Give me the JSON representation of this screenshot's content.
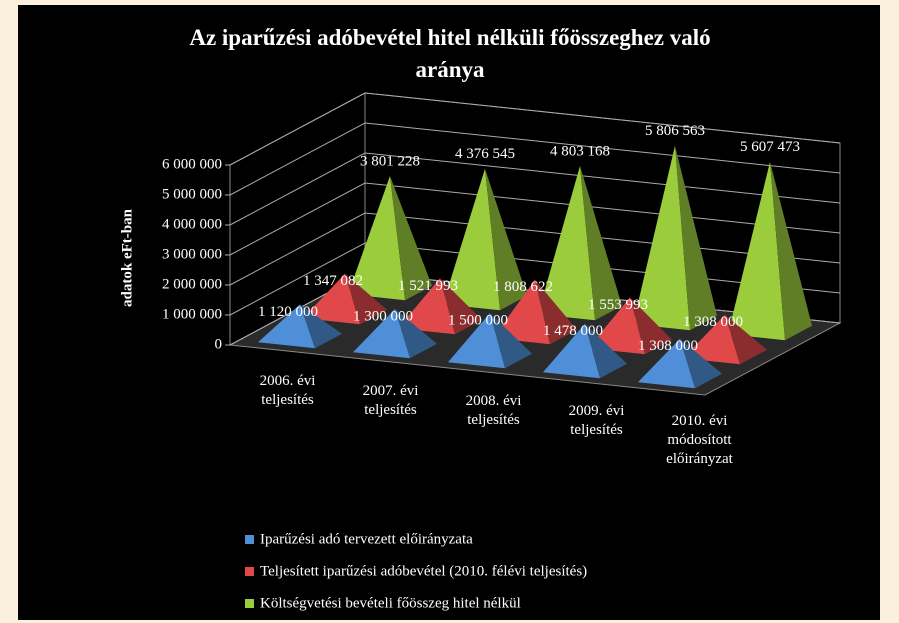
{
  "chart_data": {
    "type": "pyramid3d",
    "title": "Az iparűzési adóbevétel hitel nélküli főösszeghez való aránya",
    "y_label": "adatok eFt-ban",
    "categories": [
      "2006. évi teljesítés",
      "2007. évi teljesítés",
      "2008. évi teljesítés",
      "2009. évi teljesítés",
      "2010. évi módosított előirányzat"
    ],
    "series": [
      {
        "name": "Iparűzési adó tervezett előirányzata",
        "color": "#4f8fd8",
        "values": [
          1120000,
          1300000,
          1500000,
          1478000,
          1308000
        ],
        "value_labels": [
          "1 120 000",
          "1 300 000",
          "1 500 000",
          "1 478 000",
          "1 308 000"
        ]
      },
      {
        "name": "Teljesített iparűzési adóbevétel (2010. félévi teljesítés)",
        "color": "#e0484a",
        "values": [
          1347082,
          1521993,
          1808622,
          1553993,
          1308000
        ],
        "value_labels": [
          "1 347 082",
          "1 521 993",
          "1 808 622",
          "1 553 993",
          "1 308 000"
        ]
      },
      {
        "name": "Költségvetési bevételi főösszeg hitel nélkül",
        "color": "#9bcc3c",
        "values": [
          3801228,
          4376545,
          4803168,
          5806563,
          5607473
        ],
        "value_labels": [
          "3 801 228",
          "4 376 545",
          "4 803 168",
          "5 806 563",
          "5 607 473"
        ]
      }
    ],
    "ylim": [
      0,
      6000000
    ],
    "yticks": [
      {
        "value": 0,
        "label": "0"
      },
      {
        "value": 1000000,
        "label": "1 000 000"
      },
      {
        "value": 2000000,
        "label": "2 000 000"
      },
      {
        "value": 3000000,
        "label": "3 000 000"
      },
      {
        "value": 4000000,
        "label": "4 000 000"
      },
      {
        "value": 5000000,
        "label": "5 000 000"
      },
      {
        "value": 6000000,
        "label": "6 000 000"
      }
    ],
    "grid": true
  }
}
